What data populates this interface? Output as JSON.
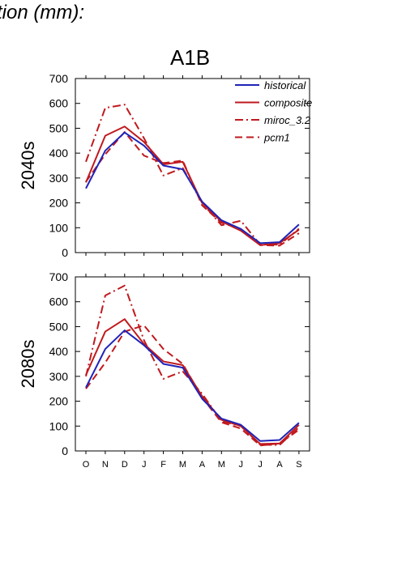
{
  "header": {
    "title": "tion (mm):"
  },
  "scenario_label": "A1B",
  "colors": {
    "historical": "#1f24b8",
    "model": "#c0191e",
    "axis": "#000000"
  },
  "chart_data": [
    {
      "type": "line",
      "panel_label": "2040s",
      "categories": [
        "O",
        "N",
        "D",
        "J",
        "F",
        "M",
        "A",
        "M",
        "J",
        "J",
        "A",
        "S"
      ],
      "ylim": [
        0,
        700
      ],
      "yticks": [
        0,
        100,
        200,
        300,
        400,
        500,
        600,
        700
      ],
      "legend_position": "top-right",
      "series": [
        {
          "name": "historical",
          "style": "solid",
          "color": "#1f24b8",
          "values": [
            258,
            410,
            483,
            430,
            350,
            335,
            205,
            130,
            95,
            38,
            42,
            113
          ]
        },
        {
          "name": "composite",
          "style": "solid",
          "color": "#c0191e",
          "values": [
            282,
            470,
            507,
            445,
            355,
            365,
            200,
            125,
            88,
            30,
            38,
            92
          ]
        },
        {
          "name": "miroc_3.2",
          "style": "dashdot",
          "color": "#c0191e",
          "values": [
            365,
            582,
            595,
            460,
            310,
            340,
            200,
            110,
            128,
            32,
            32,
            96
          ]
        },
        {
          "name": "pcm1",
          "style": "dashed",
          "color": "#c0191e",
          "values": [
            285,
            395,
            485,
            390,
            360,
            370,
            190,
            120,
            95,
            30,
            28,
            78
          ]
        }
      ]
    },
    {
      "type": "line",
      "panel_label": "2080s",
      "categories": [
        "O",
        "N",
        "D",
        "J",
        "F",
        "M",
        "A",
        "M",
        "J",
        "J",
        "A",
        "S"
      ],
      "ylim": [
        0,
        700
      ],
      "yticks": [
        0,
        100,
        200,
        300,
        400,
        500,
        600,
        700
      ],
      "series": [
        {
          "name": "historical",
          "style": "solid",
          "color": "#1f24b8",
          "values": [
            255,
            410,
            485,
            425,
            350,
            335,
            210,
            130,
            105,
            40,
            44,
            113
          ]
        },
        {
          "name": "composite",
          "style": "solid",
          "color": "#c0191e",
          "values": [
            305,
            480,
            530,
            430,
            360,
            345,
            220,
            125,
            100,
            28,
            30,
            105
          ]
        },
        {
          "name": "miroc_3.2",
          "style": "dashdot",
          "color": "#c0191e",
          "values": [
            300,
            625,
            665,
            445,
            290,
            320,
            230,
            120,
            100,
            25,
            24,
            95
          ]
        },
        {
          "name": "pcm1",
          "style": "dashed",
          "color": "#c0191e",
          "values": [
            250,
            355,
            480,
            505,
            410,
            350,
            215,
            115,
            90,
            22,
            30,
            85
          ]
        }
      ]
    }
  ]
}
